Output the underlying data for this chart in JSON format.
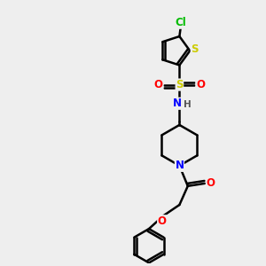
{
  "background_color": "#eeeeee",
  "atom_colors": {
    "C": "#000000",
    "H": "#000000",
    "N": "#0000ff",
    "O": "#ff0000",
    "S_thio": "#cccc00",
    "S_sul": "#cccc00",
    "Cl": "#00bb00"
  },
  "bond_color": "#000000",
  "bond_width": 1.8,
  "figsize": [
    3.0,
    3.0
  ],
  "dpi": 100,
  "xlim": [
    0,
    10
  ],
  "ylim": [
    0,
    10
  ]
}
